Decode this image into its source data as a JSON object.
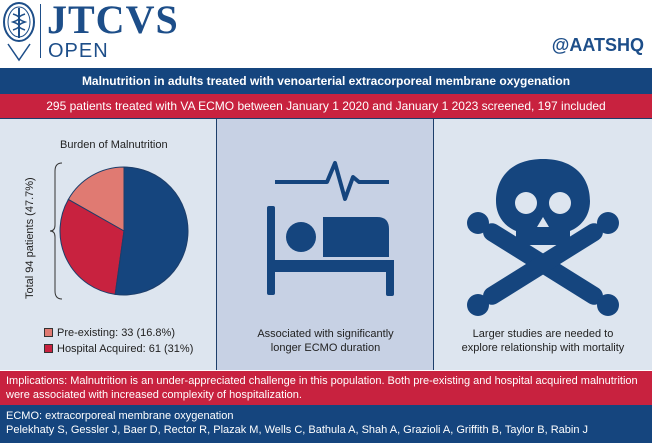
{
  "header": {
    "logo_title": "JTCVS",
    "logo_subtitle": "OPEN",
    "handle": "@AATSHQ"
  },
  "title": "Malnutrition in adults treated with venoarterial extracorporeal membrane oxygenation",
  "screening": "295 patients treated with VA ECMO between January 1 2020 and January 1 2023 screened, 197 included",
  "left_panel": {
    "heading": "Burden of Malnutrition",
    "total_label": "Total 94 patients (47.7%)",
    "legend": [
      {
        "label": "Pre-existing: 33 (16.8%)",
        "color": "#e07a72"
      },
      {
        "label": "Hospital Acquired: 61 (31%)",
        "color": "#c8223f"
      }
    ]
  },
  "chart_data": {
    "type": "pie",
    "slices": [
      {
        "label": "Pre-existing",
        "value": 16.8,
        "color": "#e07a72"
      },
      {
        "label": "Hospital Acquired",
        "value": 31.0,
        "color": "#c8223f"
      },
      {
        "label": "",
        "value": 52.2,
        "color": "#15457e"
      }
    ]
  },
  "middle_panel": {
    "icon": "patient-in-bed-heartbeat-icon",
    "caption_line1": "Associated with significantly",
    "caption_line2": "longer ECMO duration"
  },
  "right_panel": {
    "icon": "skull-crossbones-icon",
    "caption_line1": "Larger studies are needed to",
    "caption_line2": "explore relationship with mortality"
  },
  "implications": "Implications: Malnutrition is an under-appreciated challenge in this population. Both pre-existing and hospital acquired malnutrition were associated with increased complexity of hospitalization.",
  "footer": {
    "abbreviation": "ECMO: extracorporeal membrane oxygenation",
    "authors": "Pelekhaty S, Gessler J, Baer D, Rector R, Plazak M, Wells C, Bathula A, Shah A, Grazioli A, Griffith B, Taylor B, Rabin J"
  },
  "colors": {
    "navy": "#15457e",
    "red": "#c8223f",
    "pink": "#e07a72",
    "panel_light": "#dde5ef",
    "panel_mid": "#c7d1e4"
  }
}
